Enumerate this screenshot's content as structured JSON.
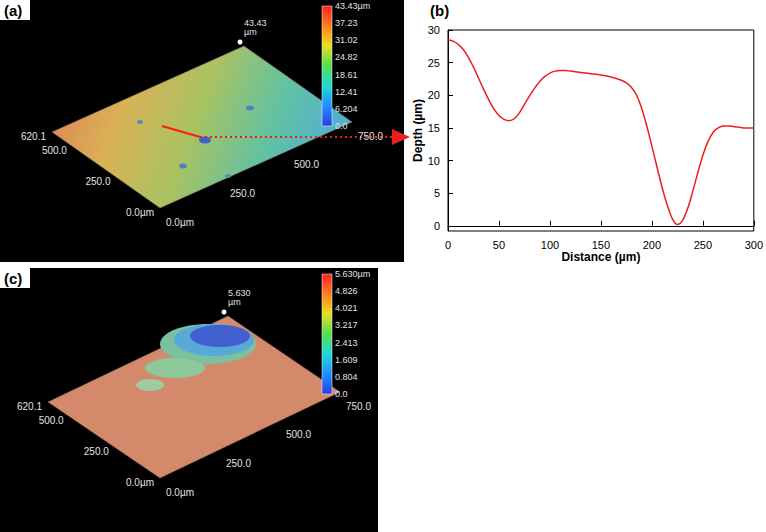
{
  "chart_data": [
    {
      "type": "surface3d",
      "title": "(a)",
      "xlim": [
        0,
        750
      ],
      "xticks": [
        {
          "value": 0,
          "label": "0.0µm"
        },
        {
          "value": 250,
          "label": "250.0"
        },
        {
          "value": 500,
          "label": "500.0"
        },
        {
          "value": 750,
          "label": "750.0"
        }
      ],
      "ylim": [
        0,
        620.1
      ],
      "yticks": [
        {
          "value": 0,
          "label": "0.0µm"
        },
        {
          "value": 250,
          "label": "250.0"
        },
        {
          "value": 500,
          "label": "500.0"
        },
        {
          "value": 620.1,
          "label": "620.1"
        }
      ],
      "colorbar_range": [
        0,
        43.43
      ],
      "colorbar_ticks": [
        {
          "value": 43.43,
          "label": "43.43µm"
        },
        37.23,
        31.02,
        24.82,
        18.61,
        12.41,
        6.204,
        {
          "value": 0,
          "label": "0.0"
        }
      ],
      "peak_label": "43.43 µm"
    },
    {
      "type": "line",
      "title": "(b)",
      "xlabel": "Distance (µm)",
      "ylabel": "Depth (µm)",
      "color": "#e8201f",
      "x": [
        0,
        5,
        10,
        15,
        20,
        25,
        30,
        35,
        40,
        45,
        50,
        55,
        60,
        65,
        70,
        75,
        80,
        85,
        90,
        95,
        100,
        105,
        110,
        115,
        120,
        130,
        140,
        150,
        160,
        170,
        175,
        180,
        185,
        190,
        195,
        200,
        205,
        210,
        215,
        220,
        225,
        230,
        235,
        240,
        245,
        250,
        255,
        260,
        265,
        270,
        275,
        280,
        290,
        300
      ],
      "values": [
        28.5,
        28.3,
        27.8,
        27,
        25.8,
        24.3,
        22.6,
        20.9,
        19.3,
        17.9,
        16.9,
        16.3,
        16.1,
        16.4,
        17.3,
        18.6,
        19.9,
        21.1,
        22.1,
        22.9,
        23.4,
        23.7,
        23.8,
        23.8,
        23.7,
        23.5,
        23.3,
        23.1,
        22.8,
        22.3,
        21.9,
        21.2,
        20,
        18,
        15.3,
        12.2,
        9,
        5.9,
        3.2,
        1.1,
        0.2,
        0.8,
        2.6,
        5.2,
        8.1,
        10.8,
        12.9,
        14.3,
        15.0,
        15.3,
        15.3,
        15.2,
        15.0,
        15.0
      ],
      "xlim": [
        0,
        300
      ],
      "xticks": [
        0,
        50,
        100,
        150,
        200,
        250,
        300
      ],
      "ylim": [
        -0.8,
        30
      ],
      "yticks": [
        0,
        5,
        10,
        15,
        20,
        25,
        30
      ]
    },
    {
      "type": "surface3d",
      "title": "(c)",
      "xlim": [
        0,
        750
      ],
      "xticks": [
        {
          "value": 0,
          "label": "0.0µm"
        },
        {
          "value": 250,
          "label": "250.0"
        },
        {
          "value": 500,
          "label": "500.0"
        },
        {
          "value": 750,
          "label": "750.0"
        }
      ],
      "ylim": [
        0,
        620.1
      ],
      "yticks": [
        {
          "value": 0,
          "label": "0.0µm"
        },
        {
          "value": 250,
          "label": "250.0"
        },
        {
          "value": 500,
          "label": "500.0"
        },
        {
          "value": 620.1,
          "label": "620.1"
        }
      ],
      "colorbar_range": [
        0,
        5.63
      ],
      "colorbar_ticks": [
        {
          "value": 5.63,
          "label": "5.630µm"
        },
        4.826,
        4.021,
        3.217,
        2.413,
        1.609,
        0.804,
        {
          "value": 0,
          "label": "0.0"
        }
      ],
      "peak_label": "5.630 µm"
    }
  ]
}
